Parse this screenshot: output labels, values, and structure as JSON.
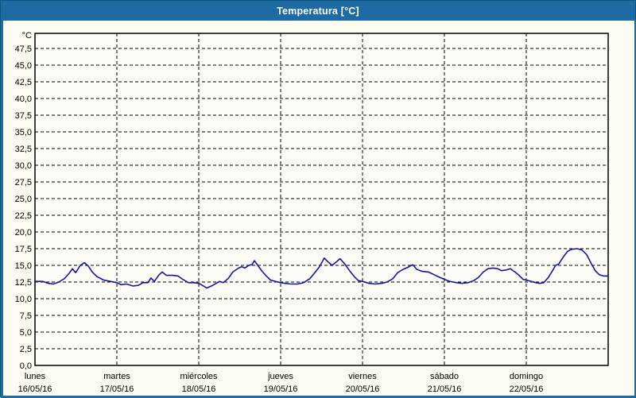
{
  "window": {
    "title": "Temperatura [°C]"
  },
  "colors": {
    "titlebar_bg": "#1e6aa3",
    "frame": "#1e6aa3",
    "frame_edge": "#15537f",
    "content_bg": "#fbfbf2",
    "plot_bg": "#fdfdf8",
    "grid": "#000000",
    "axis": "#000000",
    "label_text": "#000000",
    "title_text": "#ffffff",
    "series_line": "#1414aa"
  },
  "chart_data": {
    "type": "line",
    "title": "Temperatura [°C]",
    "ylabel_unit": "°C",
    "y_axis": {
      "min": 0,
      "max": 50,
      "tick_step": 2.5,
      "decimal_separator": ",",
      "tick_labels": [
        "47,5",
        "45,0",
        "42,5",
        "40,0",
        "37,5",
        "35,0",
        "32,5",
        "30,0",
        "27,5",
        "25,0",
        "22,5",
        "20,0",
        "17,5",
        "15,0",
        "12,5",
        "10,0",
        "7,5",
        "5,0",
        "2,5",
        "0,0"
      ]
    },
    "x_axis": {
      "hours_total": 168,
      "hours_per_day": 24,
      "days": [
        {
          "name": "lunes",
          "date": "16/05/16"
        },
        {
          "name": "martes",
          "date": "17/05/16"
        },
        {
          "name": "miércoles",
          "date": "18/05/16"
        },
        {
          "name": "jueves",
          "date": "19/05/16"
        },
        {
          "name": "viernes",
          "date": "20/05/16"
        },
        {
          "name": "sábado",
          "date": "21/05/16"
        },
        {
          "name": "domingo",
          "date": "22/05/16"
        }
      ]
    },
    "grid": {
      "horizontal_dashed": true,
      "vertical_dashed_day_boundaries": true,
      "legend": "none"
    },
    "series": [
      {
        "name": "Temperatura",
        "color": "#1414aa",
        "points_hour_temp": [
          [
            0.2,
            12.6
          ],
          [
            2.3,
            12.6
          ],
          [
            4.0,
            12.3
          ],
          [
            5.4,
            12.2
          ],
          [
            7.0,
            12.5
          ],
          [
            8.6,
            13.0
          ],
          [
            10.0,
            13.8
          ],
          [
            11.0,
            14.5
          ],
          [
            11.9,
            13.9
          ],
          [
            13.3,
            15.0
          ],
          [
            14.5,
            15.4
          ],
          [
            15.6,
            14.9
          ],
          [
            16.8,
            14.0
          ],
          [
            18.2,
            13.3
          ],
          [
            20.1,
            12.8
          ],
          [
            22.1,
            12.6
          ],
          [
            24.0,
            12.4
          ],
          [
            25.2,
            12.1
          ],
          [
            26.8,
            12.2
          ],
          [
            28.7,
            11.9
          ],
          [
            30.3,
            12.0
          ],
          [
            31.7,
            12.4
          ],
          [
            33.1,
            12.4
          ],
          [
            34.0,
            13.1
          ],
          [
            35.0,
            12.6
          ],
          [
            36.4,
            13.6
          ],
          [
            37.3,
            14.0
          ],
          [
            38.5,
            13.5
          ],
          [
            40.3,
            13.5
          ],
          [
            41.9,
            13.4
          ],
          [
            43.3,
            12.9
          ],
          [
            45.0,
            12.4
          ],
          [
            46.6,
            12.4
          ],
          [
            48.0,
            12.3
          ],
          [
            49.4,
            11.9
          ],
          [
            50.3,
            11.6
          ],
          [
            51.7,
            11.9
          ],
          [
            53.1,
            12.3
          ],
          [
            54.1,
            12.6
          ],
          [
            55.2,
            12.4
          ],
          [
            56.6,
            13.0
          ],
          [
            58.0,
            14.0
          ],
          [
            59.7,
            14.6
          ],
          [
            60.6,
            14.8
          ],
          [
            61.5,
            14.6
          ],
          [
            62.7,
            15.0
          ],
          [
            63.6,
            15.1
          ],
          [
            64.3,
            15.7
          ],
          [
            65.3,
            15.0
          ],
          [
            66.6,
            14.1
          ],
          [
            67.8,
            13.4
          ],
          [
            69.0,
            12.8
          ],
          [
            70.4,
            12.6
          ],
          [
            72.0,
            12.4
          ],
          [
            73.4,
            12.3
          ],
          [
            75.0,
            12.2
          ],
          [
            76.9,
            12.2
          ],
          [
            78.7,
            12.4
          ],
          [
            80.6,
            13.0
          ],
          [
            82.0,
            13.9
          ],
          [
            83.4,
            14.8
          ],
          [
            84.8,
            16.1
          ],
          [
            85.9,
            15.5
          ],
          [
            87.1,
            15.0
          ],
          [
            88.3,
            15.5
          ],
          [
            89.4,
            16.0
          ],
          [
            90.8,
            15.2
          ],
          [
            92.2,
            14.2
          ],
          [
            93.6,
            13.3
          ],
          [
            94.8,
            12.7
          ],
          [
            96.0,
            12.6
          ],
          [
            97.9,
            12.3
          ],
          [
            99.7,
            12.2
          ],
          [
            101.6,
            12.3
          ],
          [
            103.2,
            12.5
          ],
          [
            104.9,
            13.0
          ],
          [
            106.3,
            13.9
          ],
          [
            107.9,
            14.4
          ],
          [
            109.3,
            14.7
          ],
          [
            110.7,
            15.1
          ],
          [
            111.9,
            14.4
          ],
          [
            113.5,
            14.1
          ],
          [
            115.3,
            14.0
          ],
          [
            117.0,
            13.6
          ],
          [
            118.6,
            13.2
          ],
          [
            120.0,
            12.9
          ],
          [
            121.6,
            12.6
          ],
          [
            123.5,
            12.4
          ],
          [
            125.1,
            12.3
          ],
          [
            127.0,
            12.4
          ],
          [
            128.6,
            12.7
          ],
          [
            130.0,
            13.2
          ],
          [
            131.4,
            14.0
          ],
          [
            132.8,
            14.5
          ],
          [
            134.2,
            14.6
          ],
          [
            135.6,
            14.5
          ],
          [
            136.7,
            14.2
          ],
          [
            138.1,
            14.3
          ],
          [
            139.3,
            14.5
          ],
          [
            140.7,
            14.0
          ],
          [
            142.1,
            13.4
          ],
          [
            143.0,
            12.9
          ],
          [
            144.0,
            12.8
          ],
          [
            145.4,
            12.6
          ],
          [
            146.8,
            12.4
          ],
          [
            148.0,
            12.3
          ],
          [
            149.1,
            12.4
          ],
          [
            150.5,
            13.2
          ],
          [
            151.7,
            14.2
          ],
          [
            152.6,
            15.0
          ],
          [
            153.5,
            15.2
          ],
          [
            154.9,
            16.3
          ],
          [
            156.1,
            17.1
          ],
          [
            157.3,
            17.4
          ],
          [
            158.9,
            17.5
          ],
          [
            160.3,
            17.3
          ],
          [
            161.7,
            16.6
          ],
          [
            163.1,
            15.2
          ],
          [
            164.2,
            14.2
          ],
          [
            165.4,
            13.6
          ],
          [
            166.6,
            13.4
          ],
          [
            168.0,
            13.4
          ]
        ]
      }
    ]
  }
}
